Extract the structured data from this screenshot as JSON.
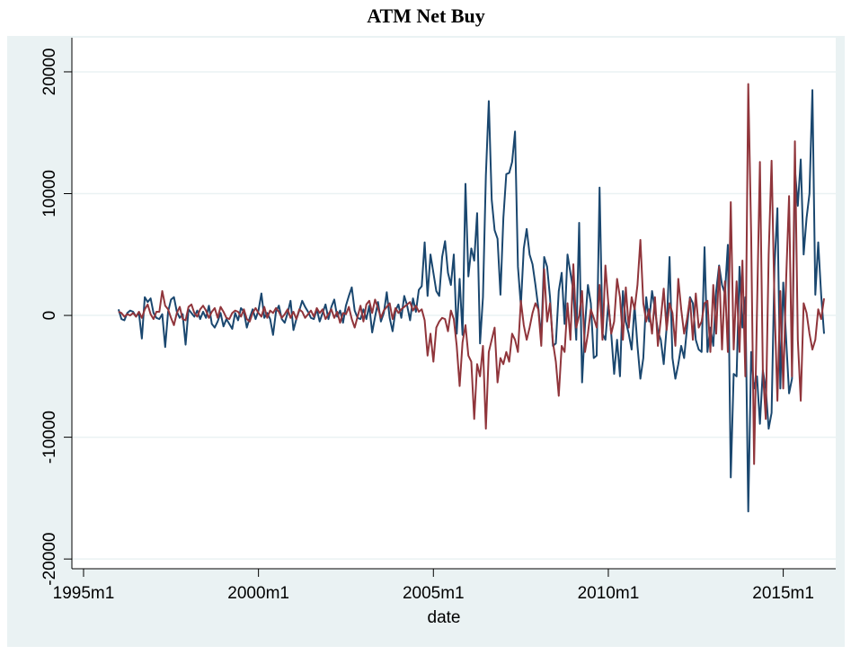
{
  "chart_data": {
    "type": "line",
    "title": "ATM Net Buy",
    "x_label": "date",
    "x_start": "1996m1",
    "xlim": [
      "1994m9",
      "2016m7"
    ],
    "xticks": [
      "1995m1",
      "2000m1",
      "2005m1",
      "2010m1",
      "2015m1"
    ],
    "ylim": [
      -20800,
      22800
    ],
    "yticks": [
      -20000,
      -10000,
      0,
      10000,
      20000
    ],
    "grid": true,
    "series": [
      {
        "color": "#1a476f",
        "values": [
          500,
          -300,
          -400,
          200,
          400,
          300,
          -100,
          200,
          -1900,
          1500,
          1100,
          1400,
          200,
          -200,
          -300,
          100,
          -2600,
          300,
          1300,
          1500,
          300,
          -200,
          100,
          -2400,
          500,
          200,
          -100,
          400,
          -300,
          300,
          -200,
          800,
          -700,
          -1000,
          -500,
          200,
          -900,
          -300,
          -700,
          -1100,
          200,
          -400,
          600,
          300,
          -1000,
          -200,
          500,
          -300,
          400,
          1800,
          -200,
          200,
          -300,
          -1600,
          300,
          800,
          -300,
          -600,
          200,
          1200,
          -1200,
          -300,
          400,
          1200,
          700,
          300,
          -200,
          -300,
          500,
          -500,
          200,
          900,
          -300,
          700,
          1300,
          -100,
          400,
          -600,
          800,
          1600,
          2300,
          400,
          -200,
          -300,
          500,
          -300,
          800,
          -1400,
          -100,
          1100,
          -500,
          200,
          1900,
          -200,
          -1300,
          400,
          900,
          -200,
          1600,
          800,
          -400,
          1400,
          300,
          2100,
          2400,
          6000,
          1600,
          5000,
          3500,
          2000,
          1600,
          4800,
          6100,
          3500,
          2500,
          5000,
          -1500,
          3000,
          -1600,
          10800,
          3200,
          5500,
          4500,
          8400,
          -2300,
          1500,
          11500,
          17600,
          9500,
          7000,
          6300,
          1700,
          8000,
          11600,
          11700,
          12600,
          15100,
          4000,
          800,
          5500,
          7100,
          5000,
          4200,
          2500,
          600,
          -1800,
          4800,
          4000,
          1500,
          -2500,
          -2300,
          2000,
          3500,
          -700,
          5000,
          3500,
          2000,
          -2000,
          7600,
          -5500,
          -800,
          2500,
          1000,
          -3500,
          -3300,
          10500,
          -1500,
          -2000,
          1000,
          -1500,
          -4800,
          -2000,
          -5000,
          2000,
          -500,
          -1500,
          -2800,
          800,
          -2500,
          -5200,
          -3500,
          1500,
          -500,
          2000,
          500,
          -1300,
          -2000,
          -4000,
          -1000,
          4800,
          -3500,
          -5200,
          -4000,
          -2500,
          -3500,
          -1000,
          1500,
          1000,
          -2000,
          -2800,
          -3000,
          5600,
          -3000,
          -1000,
          -2500,
          2000,
          4100,
          2500,
          1800,
          5800,
          -13300,
          -4800,
          -5000,
          4000,
          -1000,
          1500,
          -16100,
          -3000,
          -6000,
          -5000,
          -8900,
          -4500,
          -6000,
          -9300,
          -8000,
          4000,
          8800,
          -6000,
          2700,
          -2000,
          -6400,
          -5200,
          12000,
          9000,
          12800,
          5000,
          8000,
          10000,
          18500,
          1700,
          6000,
          1700,
          -1500
        ]
      },
      {
        "color": "#90353b",
        "values": [
          300,
          200,
          -100,
          100,
          0,
          200,
          -100,
          300,
          -200,
          500,
          900,
          100,
          -300,
          300,
          300,
          2000,
          800,
          500,
          -200,
          -800,
          200,
          700,
          -300,
          -400,
          700,
          900,
          200,
          -100,
          500,
          800,
          400,
          -200,
          300,
          600,
          -200,
          700,
          300,
          -200,
          -300,
          200,
          400,
          300,
          -100,
          500,
          -300,
          -500,
          200,
          600,
          200,
          -100,
          700,
          -200,
          400,
          200,
          600,
          300,
          -200,
          100,
          500,
          -200,
          300,
          -300,
          500,
          300,
          -200,
          100,
          400,
          -100,
          600,
          200,
          500,
          -300,
          100,
          500,
          -200,
          300,
          -600,
          200,
          100,
          700,
          -300,
          -1000,
          -100,
          800,
          -500,
          900,
          1200,
          200,
          1300,
          600,
          -200,
          400,
          700,
          1000,
          -300,
          600,
          200,
          500,
          700,
          900,
          1100,
          400,
          800,
          300,
          500,
          -400,
          -3300,
          -1500,
          -3800,
          -1000,
          -500,
          -200,
          -300,
          -1300,
          400,
          -300,
          -2500,
          -5800,
          -2200,
          -800,
          -3300,
          -3800,
          -8500,
          -4000,
          -5000,
          -2500,
          -9300,
          -3000,
          -2000,
          -1000,
          -5500,
          -3500,
          -4000,
          -3000,
          -3800,
          -1500,
          -2000,
          -3000,
          1200,
          -800,
          -2000,
          -1000,
          200,
          1000,
          500,
          -2500,
          3800,
          -500,
          1000,
          -2200,
          -3800,
          -6600,
          -2500,
          -3000,
          1000,
          -2000,
          4200,
          -1000,
          0,
          2000,
          -3000,
          -1500,
          500,
          -200,
          -1000,
          2500,
          -2000,
          4100,
          1000,
          -1500,
          -500,
          3000,
          1500,
          -2000,
          2300,
          -1000,
          1500,
          500,
          2500,
          6200,
          1000,
          -500,
          500,
          -1500,
          1500,
          -2500,
          -300,
          2200,
          -1200,
          1000,
          200,
          -2500,
          3000,
          500,
          -1500,
          -300,
          1400,
          -2000,
          1800,
          -1000,
          -500,
          1000,
          1200,
          -3000,
          2500,
          -1500,
          4000,
          -2800,
          2800,
          -3000,
          9300,
          -2800,
          2800,
          -3000,
          4500,
          -5000,
          19000,
          6500,
          -12200,
          400,
          12600,
          -4500,
          -8500,
          5000,
          12700,
          1000,
          -7000,
          2000,
          -6000,
          3000,
          9800,
          -5000,
          14300,
          -2000,
          -7000,
          1000,
          200,
          -1500,
          -2800,
          -2000,
          500,
          -300,
          1400
        ]
      }
    ]
  }
}
